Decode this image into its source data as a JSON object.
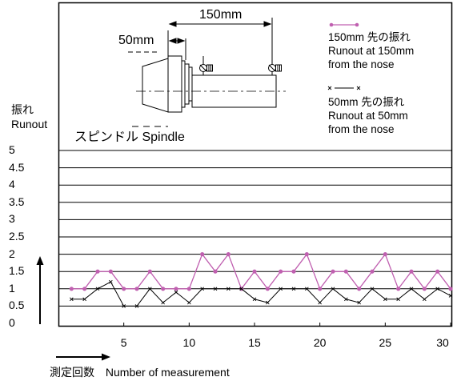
{
  "chart_data": {
    "type": "line",
    "ylabel_ja": "振れ",
    "ylabel_en": "Runout",
    "xlabel_ja": "測定回数",
    "xlabel_en": "Number of measurement",
    "ylim": [
      0,
      5
    ],
    "yticks": [
      "0",
      "0.5",
      "1",
      "1.5",
      "2",
      "2.5",
      "3",
      "3.5",
      "4",
      "4.5",
      "5"
    ],
    "xlim": [
      0,
      30
    ],
    "xticks": [
      "5",
      "10",
      "15",
      "20",
      "25",
      "30"
    ],
    "x": [
      1,
      2,
      3,
      4,
      5,
      6,
      7,
      8,
      9,
      10,
      11,
      12,
      13,
      14,
      15,
      16,
      17,
      18,
      19,
      20,
      21,
      22,
      23,
      24,
      25,
      26,
      27,
      28,
      29,
      30
    ],
    "series": [
      {
        "name_ja": "150mm 先の振れ",
        "name_en_1": "Runout at 150mm",
        "name_en_2": "from the nose",
        "marker": "dot",
        "color": "#c060b0",
        "values": [
          1,
          1,
          1.5,
          1.5,
          1,
          1,
          1.5,
          1,
          1,
          1,
          2,
          1.5,
          2,
          1,
          1.5,
          1,
          1.5,
          1.5,
          2,
          1,
          1.5,
          1.5,
          1,
          1.5,
          2,
          1,
          1.5,
          1,
          1.5,
          1
        ]
      },
      {
        "name_ja": "50mm 先の振れ",
        "name_en_1": "Runout at 50mm",
        "name_en_2": "from the nose",
        "marker": "x",
        "color": "#000000",
        "values": [
          0.7,
          0.7,
          1,
          1.2,
          0.5,
          0.5,
          1,
          0.6,
          0.9,
          0.6,
          1,
          1,
          1,
          1,
          0.7,
          0.6,
          1,
          1,
          1,
          0.6,
          1,
          0.7,
          0.6,
          1,
          0.7,
          0.7,
          1,
          0.7,
          1,
          0.8
        ]
      }
    ],
    "grid": true
  },
  "diagram": {
    "dim_150": "150mm",
    "dim_50": "50mm",
    "spindle_ja": "スピンドル",
    "spindle_en": "Spindle"
  }
}
